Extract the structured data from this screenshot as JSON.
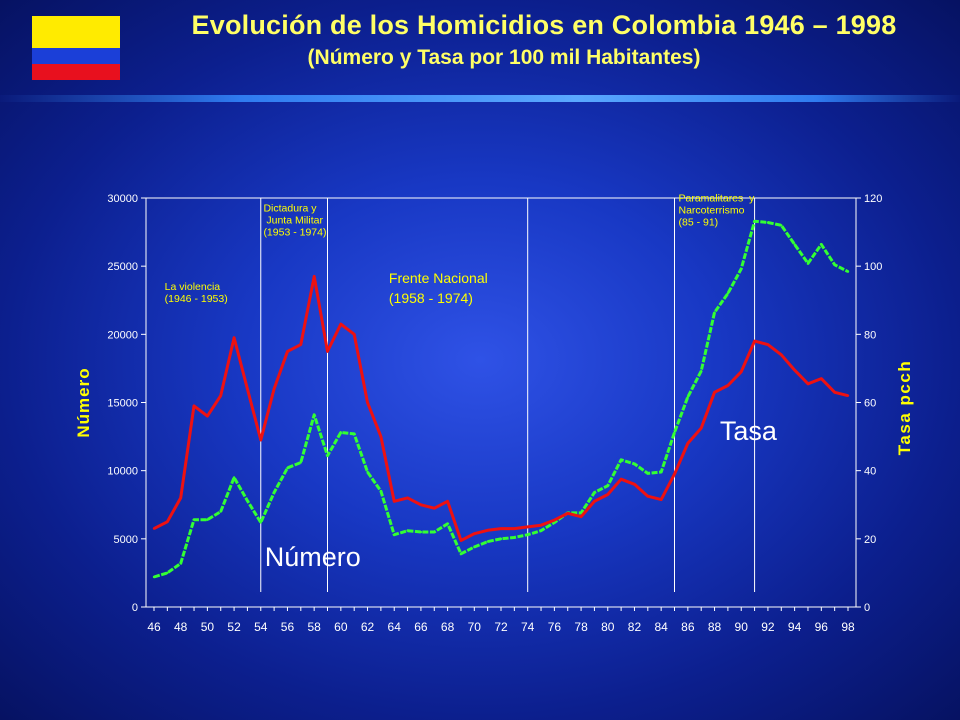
{
  "header": {
    "title": "Evolución de los Homicidios en Colombia 1946 – 1998",
    "subtitle": "(Número y Tasa por 100 mil Habitantes)"
  },
  "colors": {
    "numero": "#33ff33",
    "tasa": "#ee1111",
    "axis_label": "#ffff00",
    "period_label": "#ffff00",
    "flag": [
      "#ffeb00",
      "#1b3fd8",
      "#e8101e"
    ]
  },
  "chart_data": {
    "type": "line",
    "title": "Evolución de los Homicidios en Colombia 1946 – 1998",
    "subtitle": "(Número y Tasa por 100 mil Habitantes)",
    "ylabel_left": "Número",
    "ylabel_right": "Tasa pcch",
    "ylim_left": [
      0,
      30000
    ],
    "ylim_right": [
      0,
      120
    ],
    "yticks_left": [
      "0",
      "5000",
      "10000",
      "15000",
      "20000",
      "25000",
      "30000"
    ],
    "yticks_right": [
      "0",
      "20",
      "40",
      "60",
      "80",
      "100",
      "120"
    ],
    "x": [
      1946,
      1947,
      1948,
      1949,
      1950,
      1951,
      1952,
      1953,
      1954,
      1955,
      1956,
      1957,
      1958,
      1959,
      1960,
      1961,
      1962,
      1963,
      1964,
      1965,
      1966,
      1967,
      1968,
      1969,
      1970,
      1971,
      1972,
      1973,
      1974,
      1975,
      1976,
      1977,
      1978,
      1979,
      1980,
      1981,
      1982,
      1983,
      1984,
      1985,
      1986,
      1987,
      1988,
      1989,
      1990,
      1991,
      1992,
      1993,
      1994,
      1995,
      1996,
      1997,
      1998
    ],
    "xtick_labels": [
      "46",
      "48",
      "50",
      "52",
      "54",
      "56",
      "58",
      "60",
      "62",
      "64",
      "66",
      "68",
      "70",
      "72",
      "74",
      "76",
      "78",
      "80",
      "82",
      "84",
      "86",
      "88",
      "90",
      "92",
      "94",
      "96",
      "98"
    ],
    "series": [
      {
        "name": "Número",
        "axis": "left",
        "values": [
          2200,
          2500,
          3200,
          6400,
          6400,
          7000,
          9500,
          7800,
          6200,
          8400,
          10200,
          10600,
          14100,
          11100,
          12800,
          12700,
          9900,
          8500,
          5300,
          5600,
          5500,
          5500,
          6100,
          3900,
          4400,
          4800,
          5000,
          5100,
          5300,
          5600,
          6200,
          6900,
          6900,
          8400,
          8900,
          10800,
          10500,
          9800,
          9900,
          12800,
          15400,
          17300,
          21600,
          23000,
          24800,
          28300,
          28200,
          28000,
          26600,
          25200,
          26600,
          25100,
          24600
        ]
      },
      {
        "name": "Tasa",
        "axis": "right",
        "values": [
          23,
          25,
          32,
          59,
          56,
          62,
          79,
          64,
          49,
          64,
          75,
          77,
          97,
          75,
          83,
          80,
          60,
          50,
          31,
          32,
          30,
          29,
          31,
          19.5,
          21.5,
          22.5,
          23,
          23,
          23.5,
          24,
          25.5,
          27.5,
          26.5,
          31,
          33,
          37.5,
          36,
          32.5,
          31.5,
          39,
          48,
          52.5,
          63,
          65,
          69,
          78,
          77,
          74,
          69.5,
          65.5,
          67,
          63,
          62
        ]
      }
    ],
    "vertical_lines": [
      1954,
      1959,
      1974,
      1985,
      1991
    ],
    "annotations": [
      {
        "text": [
          "La violencia",
          "(1946 - 1953)"
        ],
        "x": 1946.8,
        "y": 93,
        "axis": "right",
        "size": "small"
      },
      {
        "text": [
          "Dictadura y",
          " Junta Militar",
          "(1953 - 1974)"
        ],
        "x": 1954.2,
        "y": 116,
        "axis": "right",
        "size": "small"
      },
      {
        "text": [
          "Frente Nacional",
          "(1958 - 1974)"
        ],
        "x": 1963.6,
        "y": 95,
        "axis": "right",
        "size": "medium"
      },
      {
        "text": [
          "Paramalitares  y",
          "Narcoterrismo",
          "(85 - 91)"
        ],
        "x": 1985.3,
        "y": 119,
        "axis": "right",
        "size": "small"
      }
    ],
    "series_labels": [
      {
        "text": "Tasa",
        "x": 1988.4,
        "y": 49,
        "axis": "right"
      },
      {
        "text": "Número",
        "x": 1954.3,
        "y": 12,
        "axis": "right"
      }
    ]
  }
}
